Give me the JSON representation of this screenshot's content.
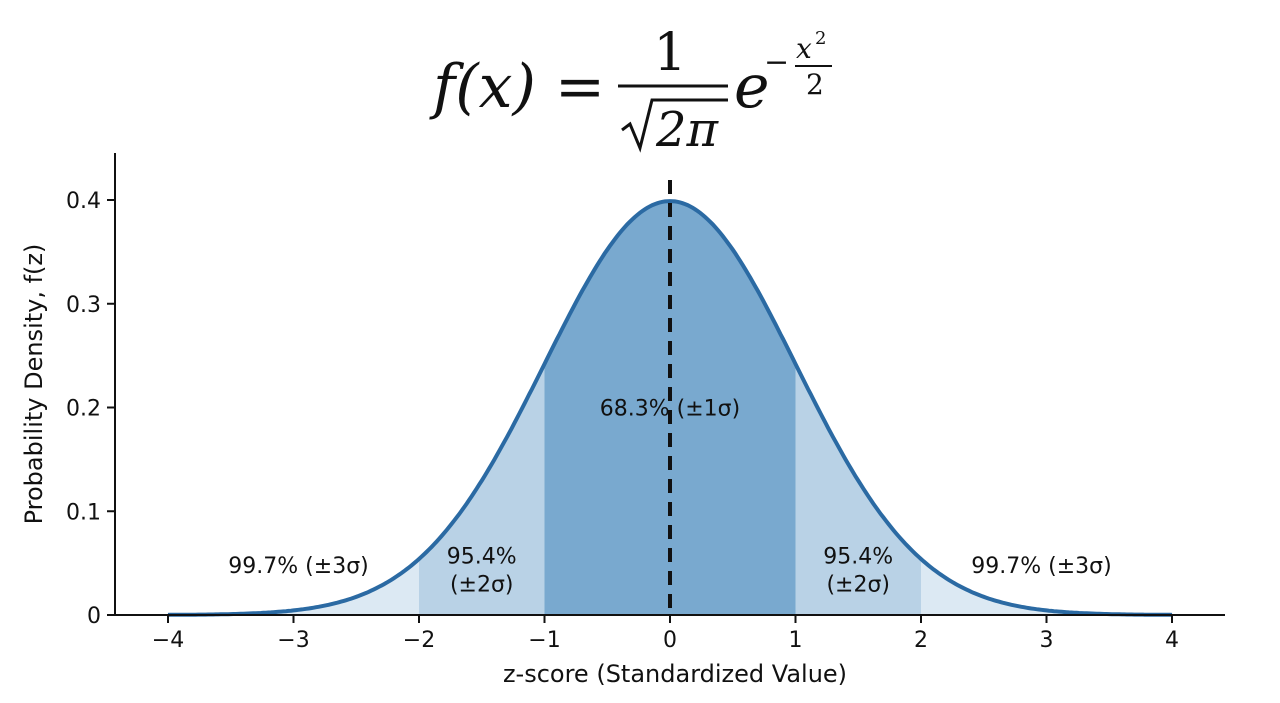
{
  "formula": {
    "lhs": "f(x) =",
    "numerator": "1",
    "denominator_radical": "2π",
    "base": "e",
    "exp_sign": "−",
    "exp_numerator": "x",
    "exp_power": "2",
    "exp_denominator": "2"
  },
  "chart_data": {
    "type": "area",
    "function": "standard normal probability density",
    "title": "",
    "xlabel": "z-score (Standardized Value)",
    "ylabel": "Probability Density, f(z)",
    "xlim": [
      -4,
      4
    ],
    "ylim": [
      0,
      0.42
    ],
    "xticks": [
      -4,
      -3,
      -2,
      -1,
      0,
      1,
      2,
      3,
      4
    ],
    "xtick_labels": [
      "−4",
      "−3",
      "−2",
      "−1",
      "0",
      "1",
      "2",
      "3",
      "4"
    ],
    "yticks": [
      0,
      0.1,
      0.2,
      0.3,
      0.4
    ],
    "ytick_labels": [
      "0",
      "0.1",
      "0.2",
      "0.3",
      "0.4"
    ],
    "grid": false,
    "mean_line": {
      "x": 0,
      "style": "dashed"
    },
    "curve": {
      "x": [
        -4,
        -3.5,
        -3,
        -2.5,
        -2,
        -1.5,
        -1,
        -0.5,
        0,
        0.5,
        1,
        1.5,
        2,
        2.5,
        3,
        3.5,
        4
      ],
      "y": [
        0.0001,
        0.0009,
        0.0044,
        0.0175,
        0.054,
        0.1295,
        0.242,
        0.3521,
        0.3989,
        0.3521,
        0.242,
        0.1295,
        0.054,
        0.0175,
        0.0044,
        0.0009,
        0.0001
      ],
      "color": "#2b6aa3"
    },
    "regions": [
      {
        "from": -4,
        "to": -2,
        "fill": "#dce9f3"
      },
      {
        "from": -2,
        "to": -1,
        "fill": "#b9d2e6"
      },
      {
        "from": -1,
        "to": 1,
        "fill": "#79a9cf"
      },
      {
        "from": 1,
        "to": 2,
        "fill": "#b9d2e6"
      },
      {
        "from": 2,
        "to": 4,
        "fill": "#dce9f3"
      }
    ],
    "annotations": [
      {
        "lines": [
          "99.7% (±3σ)"
        ],
        "x": -2.96,
        "y": 0.048
      },
      {
        "lines": [
          "95.4%",
          "(±2σ)"
        ],
        "x": -1.5,
        "y": 0.044
      },
      {
        "lines": [
          "68.3% (±1σ)"
        ],
        "x": 0,
        "y": 0.2
      },
      {
        "lines": [
          "95.4%",
          "(±2σ)"
        ],
        "x": 1.5,
        "y": 0.044
      },
      {
        "lines": [
          "99.7% (±3σ)"
        ],
        "x": 2.96,
        "y": 0.048
      }
    ]
  }
}
